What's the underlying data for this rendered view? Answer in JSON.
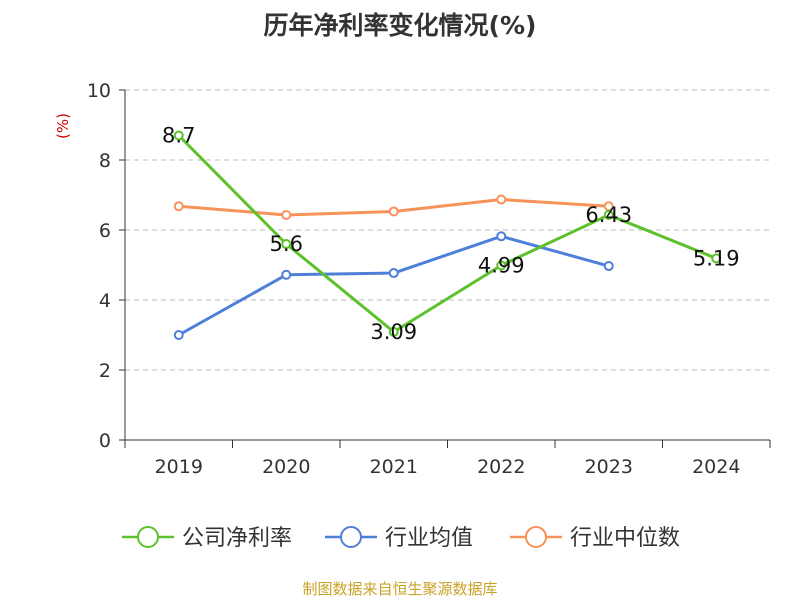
{
  "title": "历年净利率变化情况(%)",
  "source": "制图数据来自恒生聚源数据库",
  "chart_data": {
    "type": "line",
    "title": "历年净利率变化情况(%)",
    "ylabel": "(%)",
    "xlabel": "",
    "categories": [
      "2019",
      "2020",
      "2021",
      "2022",
      "2023",
      "2024"
    ],
    "ylim": [
      0,
      10
    ],
    "yticks": [
      0,
      2,
      4,
      6,
      8,
      10
    ],
    "grid": "horizontal-dashed",
    "legend_position": "bottom",
    "series": [
      {
        "name": "公司净利率",
        "color": "#5cc12a",
        "values": [
          8.7,
          5.6,
          3.09,
          4.99,
          6.43,
          5.19
        ],
        "labels": [
          "8.7",
          "5.6",
          "3.09",
          "4.99",
          "6.43",
          "5.19"
        ]
      },
      {
        "name": "行业均值",
        "color": "#4e7fd9",
        "values": [
          3.0,
          4.72,
          4.77,
          5.82,
          4.97,
          null
        ]
      },
      {
        "name": "行业中位数",
        "color": "#f7925a",
        "values": [
          6.68,
          6.43,
          6.53,
          6.87,
          6.68,
          null
        ]
      }
    ]
  }
}
